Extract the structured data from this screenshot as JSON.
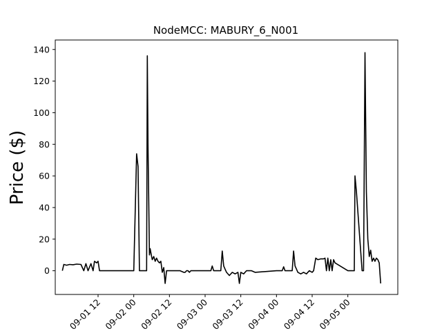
{
  "chart_data": {
    "type": "line",
    "title": "NodeMCC: MABURY_6_N001",
    "xlabel": "",
    "ylabel": "Price ($)",
    "x_ticks": [
      "09-01 12",
      "09-02 00",
      "09-02 12",
      "09-03 00",
      "09-03 12",
      "09-04 00",
      "09-04 12",
      "09-05 00"
    ],
    "y_ticks": [
      0,
      20,
      40,
      60,
      80,
      100,
      120,
      140
    ],
    "xlim": [
      -0.1,
      4.7
    ],
    "ylim": [
      -15,
      146
    ],
    "grid": false,
    "legend": "none",
    "line_color": "#000000",
    "series": [
      {
        "x": [
          0.0,
          0.02,
          0.06,
          0.1,
          0.15,
          0.2,
          0.26,
          0.3,
          0.33,
          0.36,
          0.4,
          0.43,
          0.45,
          0.48,
          0.5,
          0.52,
          0.53,
          0.55,
          0.6,
          0.7,
          0.8,
          0.9,
          1.0,
          1.04,
          1.06,
          1.08,
          1.1,
          1.15,
          1.18,
          1.19,
          1.2,
          1.22,
          1.23,
          1.25,
          1.26,
          1.28,
          1.3,
          1.32,
          1.34,
          1.36,
          1.38,
          1.4,
          1.42,
          1.44,
          1.46,
          1.5,
          1.6,
          1.65,
          1.7,
          1.72,
          1.74,
          1.76,
          1.78,
          1.8,
          2.0,
          2.08,
          2.1,
          2.12,
          2.15,
          2.2,
          2.22,
          2.24,
          2.26,
          2.28,
          2.3,
          2.34,
          2.38,
          2.42,
          2.46,
          2.48,
          2.5,
          2.54,
          2.58,
          2.6,
          2.65,
          2.7,
          3.0,
          3.08,
          3.1,
          3.12,
          3.17,
          3.2,
          3.22,
          3.24,
          3.26,
          3.28,
          3.3,
          3.34,
          3.38,
          3.42,
          3.46,
          3.5,
          3.52,
          3.55,
          3.58,
          3.62,
          3.66,
          3.68,
          3.7,
          3.72,
          3.74,
          3.76,
          3.78,
          3.8,
          3.82,
          4.0,
          4.09,
          4.1,
          4.12,
          4.2,
          4.21,
          4.22,
          4.24,
          4.26,
          4.28,
          4.3,
          4.32,
          4.34,
          4.36,
          4.38,
          4.4,
          4.42,
          4.44,
          4.46
        ],
        "y": [
          0.0,
          4.0,
          3.5,
          4.0,
          3.8,
          4.2,
          4.0,
          0.0,
          4.5,
          0.0,
          4.5,
          0.0,
          6.0,
          5.0,
          6.0,
          0.0,
          0.0,
          0.0,
          0.0,
          0.0,
          0.0,
          0.0,
          0.0,
          74.0,
          66.0,
          0.0,
          0.0,
          0.0,
          0.0,
          136.0,
          80.0,
          10.0,
          14.0,
          9.0,
          7.0,
          9.0,
          6.0,
          8.0,
          6.0,
          5.0,
          6.0,
          -1.0,
          2.0,
          -8.0,
          0.0,
          0.0,
          0.0,
          0.0,
          -1.0,
          -1.0,
          0.0,
          0.0,
          -1.0,
          0.0,
          0.0,
          0.0,
          3.0,
          0.0,
          0.0,
          0.0,
          0.0,
          12.5,
          3.0,
          1.0,
          -1.0,
          -3.0,
          -1.0,
          -2.0,
          -1.0,
          -8.0,
          -1.0,
          -2.0,
          0.0,
          0.0,
          0.0,
          -1.0,
          0.0,
          0.0,
          2.5,
          0.0,
          0.0,
          0.0,
          0.0,
          12.5,
          3.0,
          1.0,
          -1.0,
          -2.0,
          -1.0,
          -2.0,
          0.0,
          -1.0,
          0.0,
          8.0,
          7.0,
          7.5,
          7.5,
          8.0,
          0.0,
          8.0,
          0.0,
          7.0,
          0.0,
          7.0,
          5.0,
          0.0,
          0.0,
          60.0,
          50.0,
          0.0,
          0.0,
          0.0,
          138.0,
          50.0,
          20.0,
          9.0,
          13.0,
          6.0,
          8.0,
          6.0,
          8.0,
          7.0,
          5.0,
          -8.0
        ]
      }
    ]
  }
}
